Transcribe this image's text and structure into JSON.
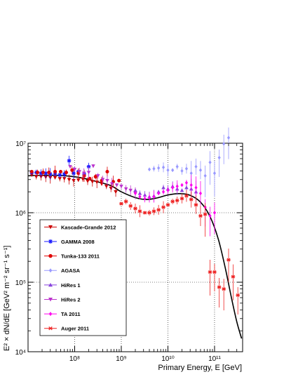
{
  "chart_data": {
    "type": "scatter",
    "title": "",
    "xlabel": "Primary Energy, E [GeV]",
    "ylabel": "E² × dN/dE [GeV² m⁻² sr⁻¹ s⁻¹]",
    "x_scale": "log",
    "y_scale": "log",
    "xlim": [
      10000000,
      400000000000
    ],
    "ylim": [
      10000,
      10000000
    ],
    "grid": true,
    "legend_position": "left",
    "x_major_ticks": [
      {
        "value": 100000000,
        "label": "10⁸"
      },
      {
        "value": 1000000000,
        "label": "10⁹"
      },
      {
        "value": 10000000000,
        "label": "10¹⁰"
      },
      {
        "value": 100000000000,
        "label": "10¹¹"
      }
    ],
    "y_major_ticks": [
      {
        "value": 10000,
        "label": "10⁴"
      },
      {
        "value": 100000,
        "label": "10⁵"
      },
      {
        "value": 1000000,
        "label": "10⁶"
      },
      {
        "value": 10000000,
        "label": "10⁷"
      }
    ],
    "model_curve": {
      "color": "#000000",
      "x": [
        10000000,
        20000000,
        40000000,
        80000000,
        150000000,
        300000000,
        600000000,
        1000000000,
        2000000000,
        3500000000,
        6000000000,
        10000000000,
        18000000000,
        30000000000,
        50000000000,
        80000000000,
        120000000000,
        170000000000,
        230000000000,
        300000000000,
        380000000000
      ],
      "y": [
        3400000,
        3450000,
        3450000,
        3350000,
        3150000,
        2800000,
        2450000,
        2000000,
        1650000,
        1550000,
        1640000,
        1800000,
        1880000,
        1780000,
        1420000,
        880000,
        420000,
        160000,
        60000,
        27000,
        15500
      ]
    },
    "series": [
      {
        "name": "Kascade-Grande 2012",
        "color": "#cc0000",
        "marker": "triangle-down",
        "x": [
          12000000,
          15000000,
          19000000,
          24000000,
          30000000,
          38000000,
          48000000,
          60000000,
          76000000,
          95000000,
          120000000,
          150000000,
          190000000,
          240000000,
          300000000,
          380000000,
          480000000,
          600000000,
          760000000
        ],
        "y": [
          3500000,
          3300000,
          3300000,
          3250000,
          3200000,
          3200000,
          3100000,
          3100000,
          3000000,
          2900000,
          2950000,
          3050000,
          2850000,
          2800000,
          2750000,
          2600000,
          2400000,
          2250000,
          2000000
        ]
      },
      {
        "name": "GAMMA 2008",
        "color": "#1a1aff",
        "marker": "asterisk",
        "x": [
          12000000,
          15000000,
          19000000,
          24000000,
          30000000,
          38000000,
          48000000,
          60000000,
          76000000,
          95000000,
          120000000,
          160000000,
          200000000
        ],
        "y": [
          3800000,
          3800000,
          3700000,
          3700000,
          3600000,
          3600000,
          3500000,
          3600000,
          5600000,
          3700000,
          3900000,
          3600000,
          4600000
        ]
      },
      {
        "name": "Tunka-133 2011",
        "color": "#e00000",
        "marker": "circle",
        "x": [
          12000000,
          16000000,
          21000000,
          28000000,
          38000000,
          50000000,
          66000000,
          88000000,
          120000000,
          160000000,
          210000000,
          280000000,
          380000000,
          500000000,
          670000000,
          890000000
        ],
        "y": [
          3900000,
          3800000,
          3800000,
          3800000,
          3900000,
          3900000,
          3800000,
          4100000,
          3700000,
          3400000,
          3100000,
          3300000,
          2900000,
          3900000,
          2800000,
          2900000
        ]
      },
      {
        "name": "AGASA",
        "color": "#9999ff",
        "marker": "diamond",
        "x": [
          4000000000,
          5000000000,
          6300000000,
          8000000000,
          10000000000,
          12600000000,
          15800000000,
          20000000000,
          25000000000,
          31600000000,
          40000000000,
          50000000000,
          63000000000,
          80000000000,
          100000000000,
          126000000000,
          158000000000,
          200000000000
        ],
        "y": [
          4200000,
          4300000,
          4400000,
          4500000,
          4100000,
          4100000,
          4600000,
          4000000,
          4300000,
          3700000,
          4600000,
          4100000,
          3400000,
          5300000,
          3700000,
          6200000,
          9800000,
          12000000
        ]
      },
      {
        "name": "HiRes 1",
        "color": "#8844dd",
        "marker": "triangle-up",
        "x": [
          2000000000,
          2500000000,
          3200000000,
          4000000000,
          5000000000,
          6300000000,
          8000000000,
          10000000000,
          12600000000,
          15800000000,
          20000000000,
          25000000000,
          31600000000,
          40000000000
        ],
        "y": [
          2100000,
          1900000,
          1800000,
          1700000,
          1750000,
          2000000,
          2300000,
          2200000,
          2400000,
          2200000,
          2100000,
          2300000,
          2200000,
          2000000
        ]
      },
      {
        "name": "HiRes 2",
        "color": "#bb33cc",
        "marker": "triangle-down",
        "x": [
          80000000,
          100000000,
          126000000,
          158000000,
          200000000,
          250000000,
          316000000,
          400000000,
          500000000,
          630000000,
          800000000,
          1000000000,
          1260000000,
          1580000000,
          2000000000
        ],
        "y": [
          4600000,
          4200000,
          3900000,
          3700000,
          3800000,
          4700000,
          3400000,
          3000000,
          2900000,
          2600000,
          2500000,
          2400000,
          2200000,
          2100000,
          1900000
        ]
      },
      {
        "name": "TA 2011",
        "color": "#ff00ee",
        "marker": "diamond",
        "x": [
          2000000000,
          2500000000,
          3200000000,
          4000000000,
          5000000000,
          6300000000,
          8000000000,
          10000000000,
          12600000000,
          15800000000,
          20000000000,
          25000000000,
          31600000000,
          40000000000,
          50000000000,
          63000000000,
          80000000000,
          100000000000
        ],
        "y": [
          1900000,
          1700000,
          1600000,
          1650000,
          1700000,
          1900000,
          2000000,
          2100000,
          2300000,
          2400000,
          2500000,
          2700000,
          2500000,
          2300000,
          1900000,
          1200000,
          900000,
          1000000
        ]
      },
      {
        "name": "Auger 2011",
        "color": "#ee2222",
        "marker": "star",
        "x": [
          1000000000,
          1260000000,
          1580000000,
          2000000000,
          2500000000,
          3200000000,
          4000000000,
          5000000000,
          6300000000,
          8000000000,
          10000000000,
          12600000000,
          15800000000,
          20000000000,
          25000000000,
          31600000000,
          40000000000,
          50000000000,
          63000000000,
          80000000000,
          100000000000,
          126000000000,
          158000000000,
          200000000000,
          250000000000,
          316000000000
        ],
        "y": [
          1350000,
          1450000,
          1250000,
          1150000,
          1050000,
          1000000,
          1000000,
          1050000,
          1100000,
          1200000,
          1300000,
          1450000,
          1500000,
          1600000,
          1750000,
          1550000,
          1300000,
          900000,
          950000,
          140000,
          140000,
          85000,
          80000,
          210000,
          120000,
          65000
        ]
      }
    ]
  }
}
